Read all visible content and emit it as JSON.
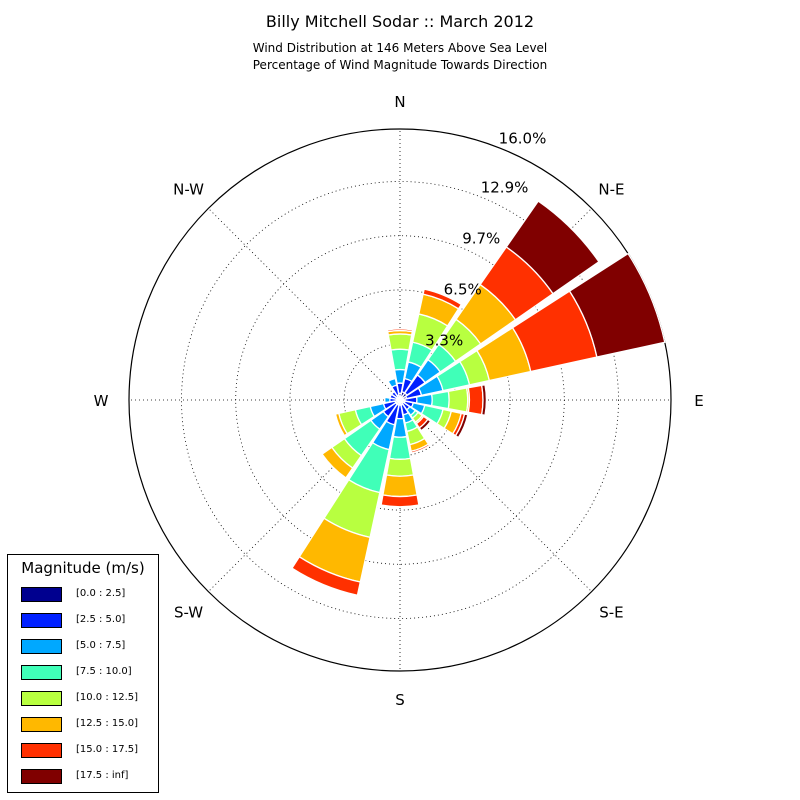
{
  "header": {
    "title": "Billy Mitchell Sodar :: March 2012",
    "subtitle_line1": "Wind Distribution at 146 Meters Above Sea Level",
    "subtitle_line2": "Percentage of Wind Magnitude Towards Direction"
  },
  "chart_data": {
    "type": "windrose",
    "direction_labels": [
      {
        "text": "N",
        "angle_deg": 0
      },
      {
        "text": "N-E",
        "angle_deg": 45
      },
      {
        "text": "E",
        "angle_deg": 90
      },
      {
        "text": "S-E",
        "angle_deg": 135
      },
      {
        "text": "S",
        "angle_deg": 180
      },
      {
        "text": "S-W",
        "angle_deg": 225
      },
      {
        "text": "W",
        "angle_deg": 270
      },
      {
        "text": "N-W",
        "angle_deg": 315
      }
    ],
    "radial_ticks": [
      3.3,
      6.5,
      9.7,
      12.9,
      16.0
    ],
    "radial_tick_labels": [
      "3.3%",
      "6.5%",
      "9.7%",
      "12.9%",
      "16.0%"
    ],
    "rmax": 16.0,
    "grid": true,
    "bins": [
      {
        "label": "[0.0 : 2.5]",
        "color": "#00008f"
      },
      {
        "label": "[2.5 : 5.0]",
        "color": "#0020ff"
      },
      {
        "label": "[5.0 : 7.5]",
        "color": "#00a8ff"
      },
      {
        "label": "[7.5 : 10.0]",
        "color": "#40ffb8"
      },
      {
        "label": "[10.0 : 12.5]",
        "color": "#b8ff40"
      },
      {
        "label": "[12.5 : 15.0]",
        "color": "#ffb800"
      },
      {
        "label": "[15.0 : 17.5]",
        "color": "#ff3000"
      },
      {
        "label": "[17.5 : inf]",
        "color": "#800000"
      }
    ],
    "sectors": [
      {
        "direction_deg": 0,
        "values": [
          0.4,
          0.6,
          0.8,
          1.2,
          0.9,
          0.2,
          0.1,
          0.0
        ]
      },
      {
        "direction_deg": 22.5,
        "values": [
          0.5,
          0.8,
          1.0,
          1.2,
          1.7,
          1.2,
          0.3,
          0.0
        ]
      },
      {
        "direction_deg": 45,
        "values": [
          0.5,
          1.3,
          1.1,
          1.1,
          1.8,
          2.5,
          2.7,
          3.3
        ]
      },
      {
        "direction_deg": 67.5,
        "values": [
          0.4,
          0.9,
          1.3,
          1.6,
          1.2,
          2.5,
          4.0,
          4.1
        ]
      },
      {
        "direction_deg": 90,
        "values": [
          0.3,
          0.7,
          0.9,
          1.0,
          1.1,
          0.1,
          0.8,
          0.2
        ]
      },
      {
        "direction_deg": 112.5,
        "values": [
          0.3,
          0.5,
          0.7,
          1.1,
          0.5,
          0.6,
          0.2,
          0.2
        ]
      },
      {
        "direction_deg": 135,
        "values": [
          0.2,
          0.5,
          0.4,
          0.2,
          0.3,
          0.1,
          0.3,
          0.2
        ]
      },
      {
        "direction_deg": 157.5,
        "values": [
          0.3,
          0.6,
          0.5,
          0.5,
          0.8,
          0.4,
          0.1,
          0.0
        ]
      },
      {
        "direction_deg": 180,
        "values": [
          0.3,
          0.8,
          1.1,
          1.3,
          1.0,
          1.2,
          0.6,
          0.0
        ]
      },
      {
        "direction_deg": 202.5,
        "values": [
          0.3,
          1.2,
          1.5,
          2.6,
          2.7,
          2.7,
          0.8,
          0.0
        ]
      },
      {
        "direction_deg": 225,
        "values": [
          0.3,
          0.9,
          0.9,
          1.9,
          0.9,
          0.7,
          0.0,
          0.0
        ]
      },
      {
        "direction_deg": 247.5,
        "values": [
          0.3,
          0.7,
          0.8,
          0.9,
          1.0,
          0.2,
          0.0,
          0.0
        ]
      },
      {
        "direction_deg": 270,
        "values": [
          0.2,
          0.4,
          0.3,
          0.0,
          0.0,
          0.0,
          0.0,
          0.0
        ]
      },
      {
        "direction_deg": 292.5,
        "values": [
          0.2,
          0.4,
          0.0,
          0.0,
          0.0,
          0.0,
          0.0,
          0.0
        ]
      },
      {
        "direction_deg": 315,
        "values": [
          0.2,
          0.4,
          0.0,
          0.0,
          0.0,
          0.0,
          0.0,
          0.0
        ]
      },
      {
        "direction_deg": 337.5,
        "values": [
          0.3,
          0.6,
          0.4,
          0.0,
          0.0,
          0.0,
          0.0,
          0.0
        ]
      }
    ]
  },
  "legend": {
    "title": "Magnitude (m/s)"
  }
}
